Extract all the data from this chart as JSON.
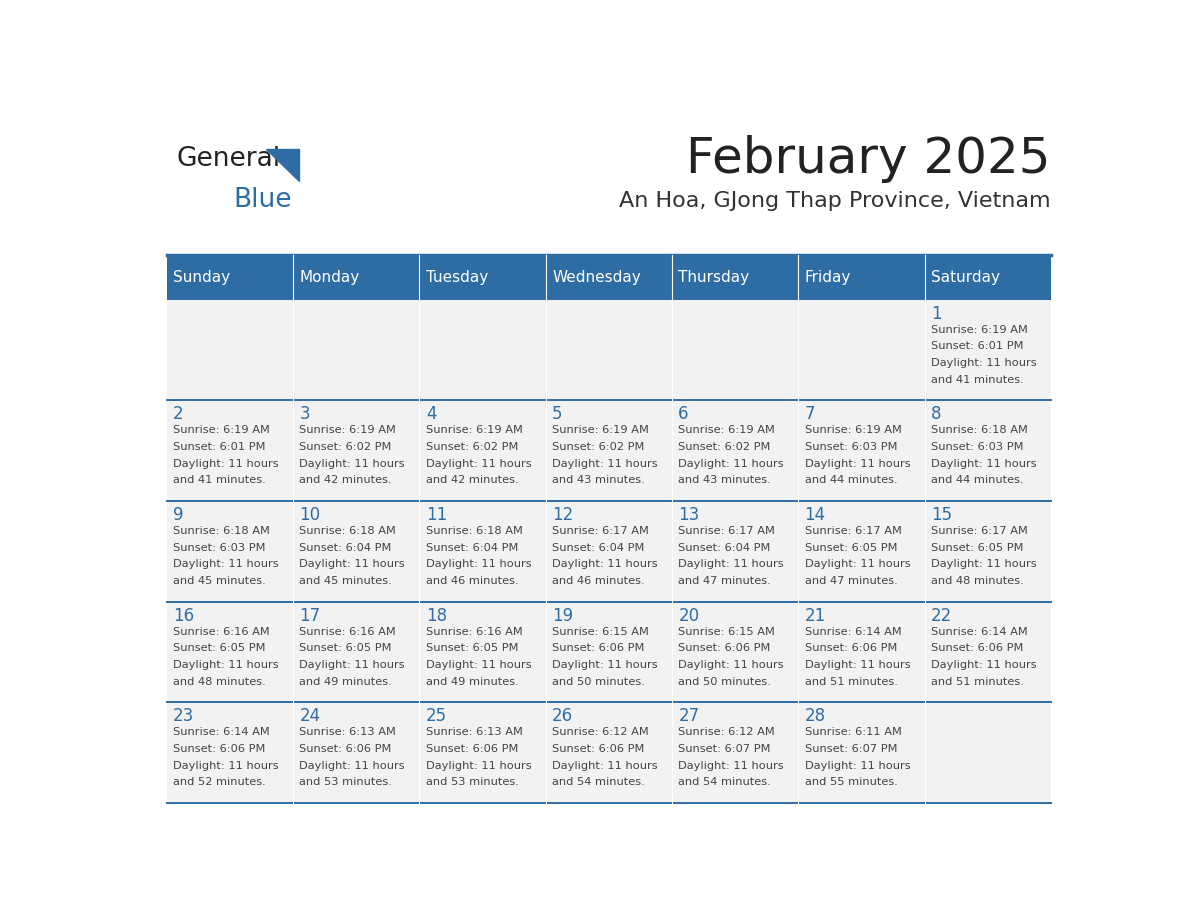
{
  "title": "February 2025",
  "subtitle": "An Hoa, GJong Thap Province, Vietnam",
  "days_of_week": [
    "Sunday",
    "Monday",
    "Tuesday",
    "Wednesday",
    "Thursday",
    "Friday",
    "Saturday"
  ],
  "header_bg": "#2E6DA4",
  "header_text": "#FFFFFF",
  "cell_bg": "#F2F2F2",
  "cell_text": "#444444",
  "day_num_color": "#2E6DA4",
  "title_color": "#222222",
  "subtitle_color": "#333333",
  "logo_general_color": "#222222",
  "logo_blue_color": "#2E6DA4",
  "calendar": [
    [
      null,
      null,
      null,
      null,
      null,
      null,
      {
        "day": 1,
        "sunrise": "6:19 AM",
        "sunset": "6:01 PM",
        "daylight_hours": 11,
        "daylight_minutes": 41
      }
    ],
    [
      {
        "day": 2,
        "sunrise": "6:19 AM",
        "sunset": "6:01 PM",
        "daylight_hours": 11,
        "daylight_minutes": 41
      },
      {
        "day": 3,
        "sunrise": "6:19 AM",
        "sunset": "6:02 PM",
        "daylight_hours": 11,
        "daylight_minutes": 42
      },
      {
        "day": 4,
        "sunrise": "6:19 AM",
        "sunset": "6:02 PM",
        "daylight_hours": 11,
        "daylight_minutes": 42
      },
      {
        "day": 5,
        "sunrise": "6:19 AM",
        "sunset": "6:02 PM",
        "daylight_hours": 11,
        "daylight_minutes": 43
      },
      {
        "day": 6,
        "sunrise": "6:19 AM",
        "sunset": "6:02 PM",
        "daylight_hours": 11,
        "daylight_minutes": 43
      },
      {
        "day": 7,
        "sunrise": "6:19 AM",
        "sunset": "6:03 PM",
        "daylight_hours": 11,
        "daylight_minutes": 44
      },
      {
        "day": 8,
        "sunrise": "6:18 AM",
        "sunset": "6:03 PM",
        "daylight_hours": 11,
        "daylight_minutes": 44
      }
    ],
    [
      {
        "day": 9,
        "sunrise": "6:18 AM",
        "sunset": "6:03 PM",
        "daylight_hours": 11,
        "daylight_minutes": 45
      },
      {
        "day": 10,
        "sunrise": "6:18 AM",
        "sunset": "6:04 PM",
        "daylight_hours": 11,
        "daylight_minutes": 45
      },
      {
        "day": 11,
        "sunrise": "6:18 AM",
        "sunset": "6:04 PM",
        "daylight_hours": 11,
        "daylight_minutes": 46
      },
      {
        "day": 12,
        "sunrise": "6:17 AM",
        "sunset": "6:04 PM",
        "daylight_hours": 11,
        "daylight_minutes": 46
      },
      {
        "day": 13,
        "sunrise": "6:17 AM",
        "sunset": "6:04 PM",
        "daylight_hours": 11,
        "daylight_minutes": 47
      },
      {
        "day": 14,
        "sunrise": "6:17 AM",
        "sunset": "6:05 PM",
        "daylight_hours": 11,
        "daylight_minutes": 47
      },
      {
        "day": 15,
        "sunrise": "6:17 AM",
        "sunset": "6:05 PM",
        "daylight_hours": 11,
        "daylight_minutes": 48
      }
    ],
    [
      {
        "day": 16,
        "sunrise": "6:16 AM",
        "sunset": "6:05 PM",
        "daylight_hours": 11,
        "daylight_minutes": 48
      },
      {
        "day": 17,
        "sunrise": "6:16 AM",
        "sunset": "6:05 PM",
        "daylight_hours": 11,
        "daylight_minutes": 49
      },
      {
        "day": 18,
        "sunrise": "6:16 AM",
        "sunset": "6:05 PM",
        "daylight_hours": 11,
        "daylight_minutes": 49
      },
      {
        "day": 19,
        "sunrise": "6:15 AM",
        "sunset": "6:06 PM",
        "daylight_hours": 11,
        "daylight_minutes": 50
      },
      {
        "day": 20,
        "sunrise": "6:15 AM",
        "sunset": "6:06 PM",
        "daylight_hours": 11,
        "daylight_minutes": 50
      },
      {
        "day": 21,
        "sunrise": "6:14 AM",
        "sunset": "6:06 PM",
        "daylight_hours": 11,
        "daylight_minutes": 51
      },
      {
        "day": 22,
        "sunrise": "6:14 AM",
        "sunset": "6:06 PM",
        "daylight_hours": 11,
        "daylight_minutes": 51
      }
    ],
    [
      {
        "day": 23,
        "sunrise": "6:14 AM",
        "sunset": "6:06 PM",
        "daylight_hours": 11,
        "daylight_minutes": 52
      },
      {
        "day": 24,
        "sunrise": "6:13 AM",
        "sunset": "6:06 PM",
        "daylight_hours": 11,
        "daylight_minutes": 53
      },
      {
        "day": 25,
        "sunrise": "6:13 AM",
        "sunset": "6:06 PM",
        "daylight_hours": 11,
        "daylight_minutes": 53
      },
      {
        "day": 26,
        "sunrise": "6:12 AM",
        "sunset": "6:06 PM",
        "daylight_hours": 11,
        "daylight_minutes": 54
      },
      {
        "day": 27,
        "sunrise": "6:12 AM",
        "sunset": "6:07 PM",
        "daylight_hours": 11,
        "daylight_minutes": 54
      },
      {
        "day": 28,
        "sunrise": "6:11 AM",
        "sunset": "6:07 PM",
        "daylight_hours": 11,
        "daylight_minutes": 55
      },
      null
    ]
  ]
}
